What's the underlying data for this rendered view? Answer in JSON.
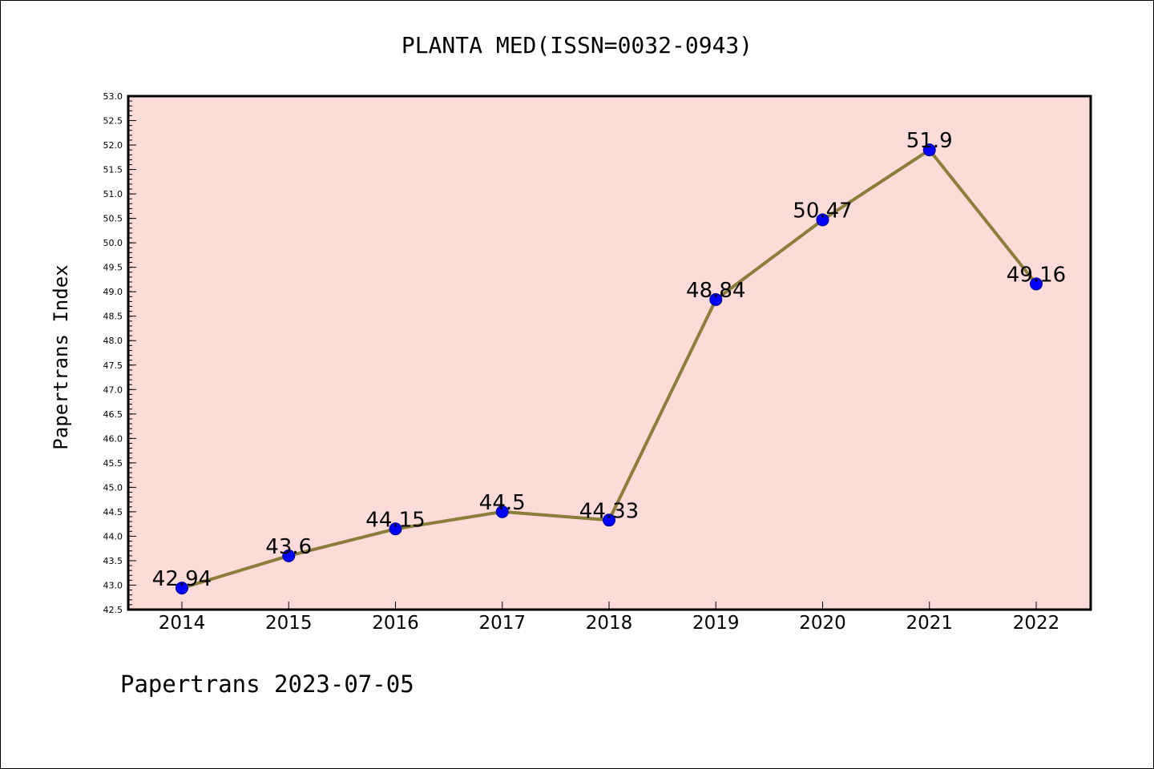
{
  "chart_data": {
    "type": "line",
    "title": "PLANTA MED(ISSN=0032-0943)",
    "xlabel": "",
    "ylabel": "Papertrans Index",
    "footer": "Papertrans 2023-07-05",
    "categories": [
      "2014",
      "2015",
      "2016",
      "2017",
      "2018",
      "2019",
      "2020",
      "2021",
      "2022"
    ],
    "series": [
      {
        "values": [
          42.94,
          43.6,
          44.15,
          44.5,
          44.33,
          48.84,
          50.47,
          51.9,
          49.16
        ]
      }
    ],
    "data_labels": [
      "42.94",
      "43.6",
      "44.15",
      "44.5",
      "44.33",
      "48.84",
      "50.47",
      "51.9",
      "49.16"
    ],
    "ylim": [
      42.5,
      53.0
    ],
    "yticks": [
      "42.5",
      "43.0",
      "43.5",
      "44.0",
      "44.5",
      "45.0",
      "45.5",
      "46.0",
      "46.5",
      "47.0",
      "47.5",
      "48.0",
      "48.5",
      "49.0",
      "49.5",
      "50.0",
      "50.5",
      "51.0",
      "51.5",
      "52.0",
      "52.5",
      "53.0"
    ],
    "grid": false,
    "legend": "none",
    "colors": {
      "plot_background": "#fddbd8",
      "line": "#8b7d3a",
      "marker": "#0000ff",
      "axis": "#000000"
    }
  }
}
